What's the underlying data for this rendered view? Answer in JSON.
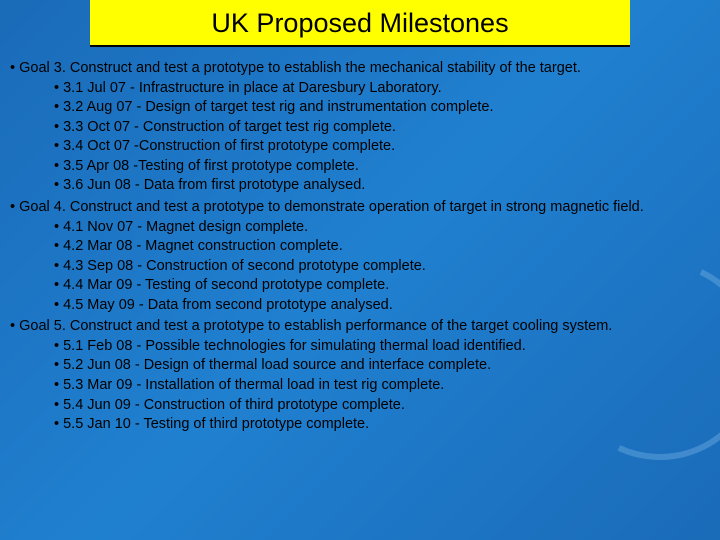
{
  "title": "UK Proposed Milestones",
  "goals": [
    {
      "heading": "• Goal 3. Construct and test a prototype to establish the mechanical stability of the target.",
      "items": [
        "• 3.1 Jul 07 - Infrastructure in place at Daresbury Laboratory.",
        "• 3.2 Aug 07 - Design of target test rig and instrumentation complete.",
        "• 3.3 Oct 07 - Construction of target test rig complete.",
        "• 3.4 Oct  07 -Construction of first prototype complete.",
        "• 3.5 Apr 08 -Testing of first prototype complete.",
        "• 3.6 Jun 08 - Data from first prototype analysed."
      ]
    },
    {
      "heading": "• Goal 4. Construct and test a prototype to demonstrate operation of target in strong magnetic field.",
      "items": [
        "• 4.1 Nov 07 - Magnet design complete.",
        "• 4.2 Mar 08 - Magnet construction complete.",
        "• 4.3 Sep 08 - Construction of second prototype complete.",
        "• 4.4 Mar 09 - Testing of second prototype complete.",
        "• 4.5 May 09 - Data from second prototype analysed."
      ]
    },
    {
      "heading": "• Goal 5. Construct and test a prototype to establish performance of the target cooling system.",
      "items": [
        "• 5.1 Feb 08 - Possible technologies for simulating thermal load identified.",
        "• 5.2 Jun 08 - Design of thermal load source and interface complete.",
        "• 5.3 Mar 09 - Installation of thermal load in test rig complete.",
        "• 5.4 Jun 09 - Construction of third prototype complete.",
        "• 5.5 Jan 10 - Testing of third prototype complete."
      ]
    }
  ],
  "colors": {
    "banner_bg": "#ffff00",
    "banner_border": "#000000",
    "body_bg_start": "#1a6bb8",
    "body_bg_end": "#2080d0",
    "text": "#000000"
  },
  "typography": {
    "title_fontsize": 27,
    "body_fontsize": 14.5,
    "font_family": "Arial"
  }
}
